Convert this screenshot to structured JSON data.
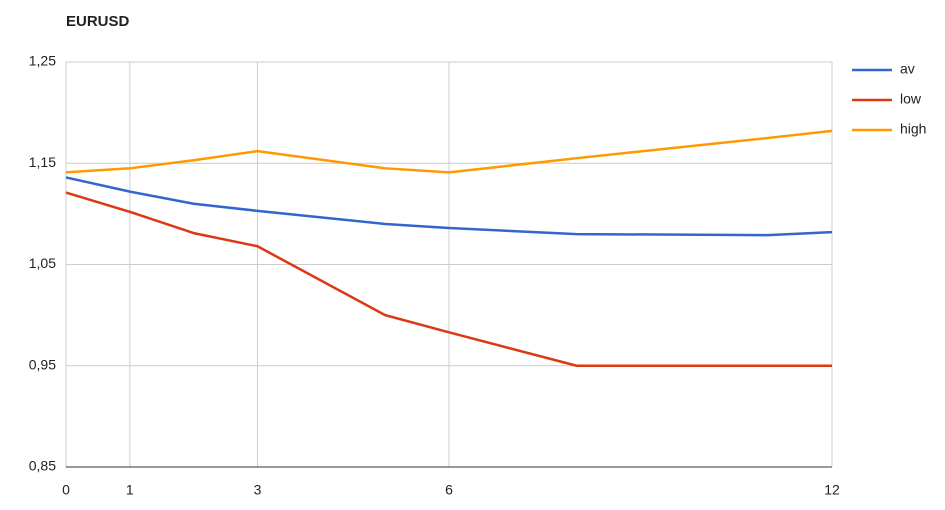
{
  "chart_data": {
    "type": "line",
    "title": "EURUSD",
    "x": [
      0,
      1,
      2,
      3,
      5,
      6,
      8,
      11,
      12
    ],
    "series": [
      {
        "name": "av",
        "color": "#3366cc",
        "values": [
          1.136,
          1.122,
          1.11,
          1.103,
          1.09,
          1.086,
          1.08,
          1.079,
          1.082
        ]
      },
      {
        "name": "low",
        "color": "#dc3912",
        "values": [
          1.121,
          1.102,
          1.081,
          1.068,
          1.0,
          0.983,
          0.95,
          0.95,
          0.95
        ]
      },
      {
        "name": "high",
        "color": "#ff9900",
        "values": [
          1.141,
          1.145,
          1.153,
          1.162,
          1.145,
          1.141,
          1.155,
          1.175,
          1.182
        ]
      }
    ],
    "xlim": [
      0,
      12
    ],
    "xticks": [
      0,
      1,
      3,
      6,
      12
    ],
    "ylim": [
      0.85,
      1.25
    ],
    "yticks": [
      {
        "value": 0.85,
        "label": "0,85"
      },
      {
        "value": 0.95,
        "label": "0,95"
      },
      {
        "value": 1.05,
        "label": "1,05"
      },
      {
        "value": 1.15,
        "label": "1,15"
      },
      {
        "value": 1.25,
        "label": "1,25"
      }
    ],
    "grid": true,
    "legend": "right"
  }
}
